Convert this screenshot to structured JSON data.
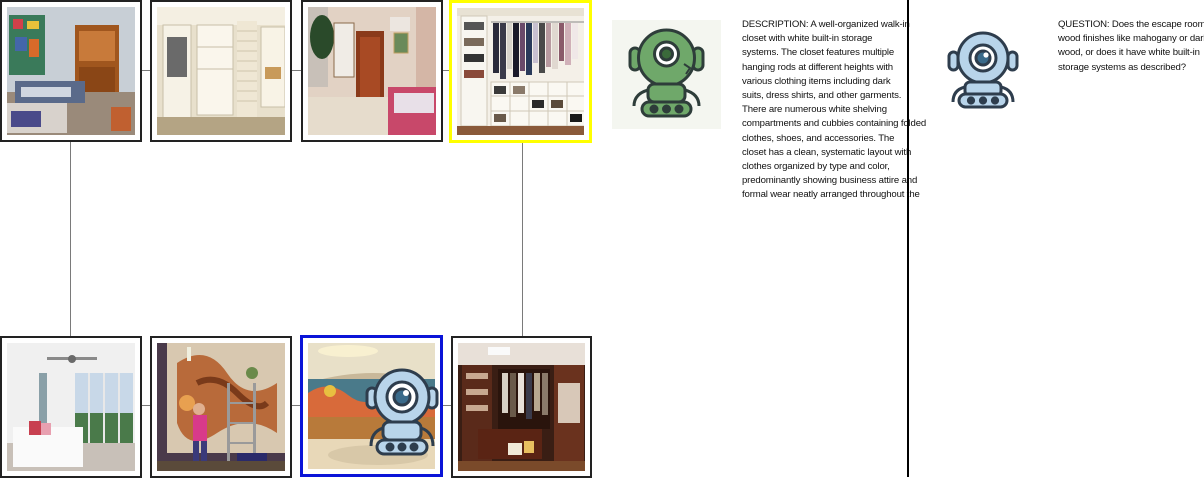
{
  "tiles": [
    {
      "name": "bedroom-messy",
      "highlight": "none"
    },
    {
      "name": "closet-white-shelves",
      "highlight": "none"
    },
    {
      "name": "bedroom-armoire",
      "highlight": "none"
    },
    {
      "name": "walk-in-closet-white",
      "highlight": "yellow"
    },
    {
      "name": "bedroom-bright",
      "highlight": "none"
    },
    {
      "name": "mural-painter",
      "highlight": "none"
    },
    {
      "name": "lobby-mural",
      "highlight": "blue"
    },
    {
      "name": "dark-wood-closet",
      "highlight": "none"
    }
  ],
  "colors": {
    "highlight_current": "#ffff00",
    "highlight_agent": "#0a14d8",
    "robot_green": "#6fa86a",
    "robot_blue": "#b8d4ea"
  },
  "description": {
    "text": "DESCRIPTION: A well-organized walk-in\ncloset with white built-in storage\nsystems. The closet features multiple\nhanging rods at different heights with\nvarious clothing items including dark\nsuits, dress shirts, and other garments.\nThere are numerous white shelving\ncompartments and cubbies containing folded\nclothes, shoes, and accessories. The\ncloset has a clean, systematic layout with\nclothes organized by type and color,\npredominantly showing business attire and\nformal wear neatly arranged throughout the"
  },
  "question": {
    "text": "QUESTION: Does the escape room have\nwood finishes like mahogany or dark\nwood, or does it have white built-in\nstorage systems as described?"
  },
  "icons": {
    "describer": "robot-green-icon",
    "asker": "robot-blue-icon"
  }
}
